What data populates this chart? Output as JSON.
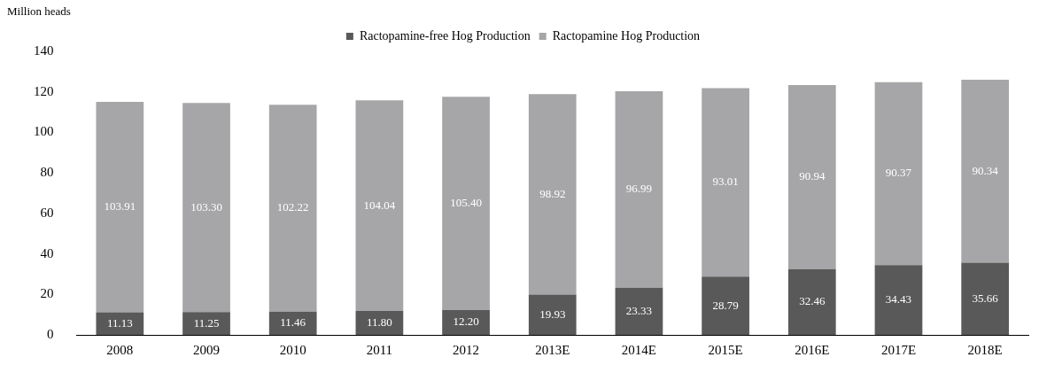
{
  "chart_data": {
    "type": "bar",
    "ylabel": "Million heads",
    "categories": [
      "2008",
      "2009",
      "2010",
      "2011",
      "2012",
      "2013E",
      "2014E",
      "2015E",
      "2016E",
      "2017E",
      "2018E"
    ],
    "series": [
      {
        "name": "Ractopamine-free Hog Production",
        "color": "#595959",
        "values": [
          11.13,
          11.25,
          11.46,
          11.8,
          12.2,
          19.93,
          23.33,
          28.79,
          32.46,
          34.43,
          35.66
        ],
        "value_labels": [
          "11.13",
          "11.25",
          "11.46",
          "11.80",
          "12.20",
          "19.93",
          "23.33",
          "28.79",
          "32.46",
          "34.43",
          "35.66"
        ]
      },
      {
        "name": "Ractopamine Hog Production",
        "color": "#a6a6a8",
        "values": [
          103.91,
          103.3,
          102.22,
          104.04,
          105.4,
          98.92,
          96.99,
          93.01,
          90.94,
          90.37,
          90.34
        ],
        "value_labels": [
          "103.91",
          "103.30",
          "102.22",
          "104.04",
          "105.40",
          "98.92",
          "96.99",
          "93.01",
          "90.94",
          "90.37",
          "90.34"
        ]
      }
    ],
    "stacked": true,
    "ylim": [
      0,
      140
    ],
    "yticks": [
      0,
      20,
      40,
      60,
      80,
      100,
      120,
      140
    ],
    "grid": false,
    "legend": "top"
  }
}
